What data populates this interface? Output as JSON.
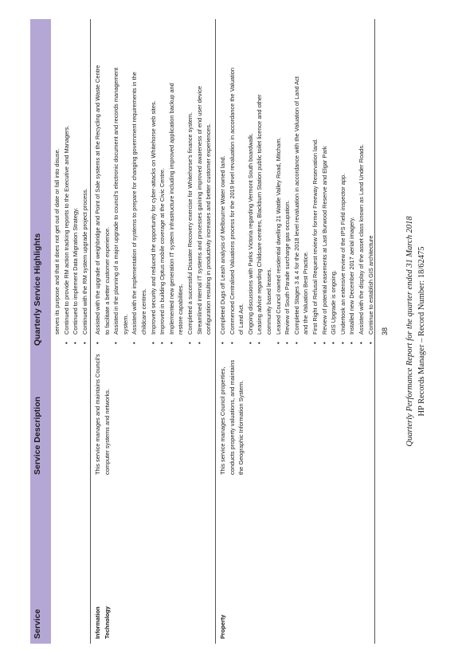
{
  "table": {
    "headers": {
      "service": "Service",
      "description": "Service Description",
      "highlights": "Quarterly Service Highlights"
    },
    "carryover_highlights": [
      "serves its purpose and that it does not get out of date or fall into disuse.",
      "Continued to provide RM action tracking reports to the Executive and Managers.",
      "Continued to implement Data Migration Strategy.",
      "Continued with the RM system upgrade project process."
    ],
    "rows": [
      {
        "service": "Information Technology",
        "description": "This service manages and maintains Council's computer systems and networks.",
        "highlights": [
          {
            "text": "Assisted with the upgrade of weighbridge and Point of Sale systems at the Recycling and Waste Centre",
            "bullet": true
          },
          {
            "text": "to facilitate a better customer experience.",
            "bullet": false
          },
          {
            "text": "Assisted in the planning of a major upgrade to council's electronic document and records management",
            "bullet": true
          },
          {
            "text": "system.",
            "bullet": false
          },
          {
            "text": "Assisted with the implementation of systems to prepare for changing government requirements in the",
            "bullet": true
          },
          {
            "text": "childcare centres.",
            "bullet": false
          },
          {
            "text": "Improved security and reduced the opportunity for cyber-attacks on Whitehorse web sites.",
            "bullet": true
          },
          {
            "text": "Improved in building Optus mobile coverage at the Civic Centre.",
            "bullet": true
          },
          {
            "text": "Implemented new generation IT system infrastructure including improved application backup and",
            "bullet": true
          },
          {
            "text": "restore capabilities.",
            "bullet": false
          },
          {
            "text": "Completed a successful Disaster Recovery exercise for Whitehorse's finance system.",
            "bullet": true
          },
          {
            "text": "Streamlined internal IT systems and processes gaining improved awareness of end user device",
            "bullet": true
          },
          {
            "text": "configuration resulting in productivity increases and better customer experiences.",
            "bullet": false
          }
        ]
      },
      {
        "service": "Property",
        "description": "This service manages Council properties, conducts property valuations, and maintains the Geographic Information System.",
        "highlights": [
          {
            "text": "Completed Dugs off Leash analysis of Melbourne Water owned land.",
            "bullet": true
          },
          {
            "text": "Commenced Centralised Valuations process for the 2019 level revaluation in accordance the Valuation",
            "bullet": true
          },
          {
            "text": "of Land Act.",
            "bullet": false
          },
          {
            "text": "Ongoing discussions with Parks Victoria regarding Vermont South boardwalk.",
            "bullet": true
          },
          {
            "text": "Leasing advice regarding Childcare centres, Blackburn Station public toilet licence and other",
            "bullet": true
          },
          {
            "text": "community based leases.",
            "bullet": false
          },
          {
            "text": "Leased Council owned residential dwelling 21 Wattle Valley Road, Mitcham.",
            "bullet": true
          },
          {
            "text": "Review of South Parade surcharge gas occupation.",
            "bullet": true
          },
          {
            "text": "Completed Stages 3 & 4 for the 2018 level revaluation in accordance with the Valuation of Land Act",
            "bullet": true
          },
          {
            "text": "and the Valuation Best Practice.",
            "bullet": false
          },
          {
            "text": "First Right of Refusal Request review for former Freeway Reservation land.",
            "bullet": true
          },
          {
            "text": "Review of potential easements at Last Burwood Reserve and Elgar Park",
            "bullet": true
          },
          {
            "text": "GIS Upgrade is ongoing.",
            "bullet": true
          },
          {
            "text": "Undertook an extensive review of the IPS Field inspector app.",
            "bullet": true
          },
          {
            "text": "Installed new December 2017 aerial imagery.",
            "bullet": true
          },
          {
            "text": "Assisted with the display of the asset class known as Land Under Roads.",
            "bullet": true
          },
          {
            "text": "Continue to establish GIS architecture",
            "bullet": true
          }
        ]
      }
    ]
  },
  "footer": {
    "page_number": "38",
    "report_title": "Quarterly Performance Report for the quarter ended 31 March 2018",
    "record": "HP Records Manager – Record Number: 18/62475"
  }
}
